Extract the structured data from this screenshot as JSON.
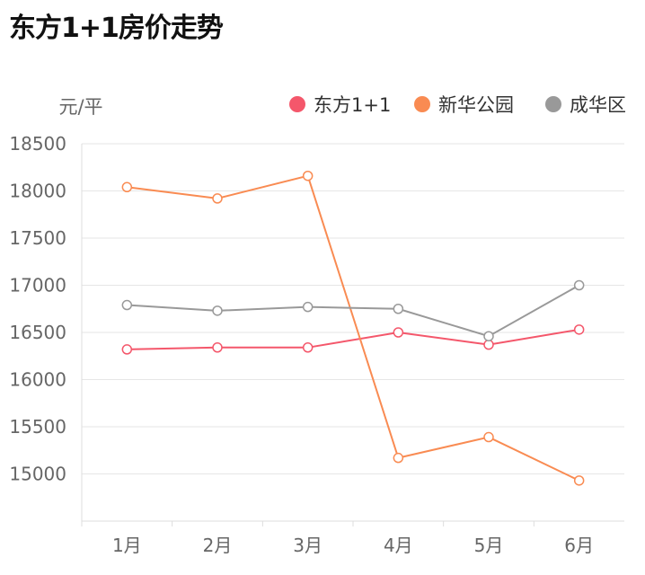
{
  "title": "东方1+1房价走势",
  "chart_data": {
    "type": "line",
    "title": "东方1+1房价走势",
    "ylabel": "元/平",
    "xlabel": "",
    "categories": [
      "1月",
      "2月",
      "3月",
      "4月",
      "5月",
      "6月"
    ],
    "ylim": [
      14500,
      18500
    ],
    "yticks": [
      15000,
      15500,
      16000,
      16500,
      17000,
      17500,
      18000,
      18500
    ],
    "grid": true,
    "legend": "top-right",
    "series": [
      {
        "name": "东方1+1",
        "color": "#f4576b",
        "values": [
          16320,
          16340,
          16340,
          16500,
          16370,
          16530
        ]
      },
      {
        "name": "新华公园",
        "color": "#f98b52",
        "values": [
          18040,
          17920,
          18160,
          15170,
          15390,
          14930
        ]
      },
      {
        "name": "成华区",
        "color": "#999999",
        "values": [
          16790,
          16730,
          16770,
          16750,
          16460,
          17000
        ]
      }
    ]
  }
}
